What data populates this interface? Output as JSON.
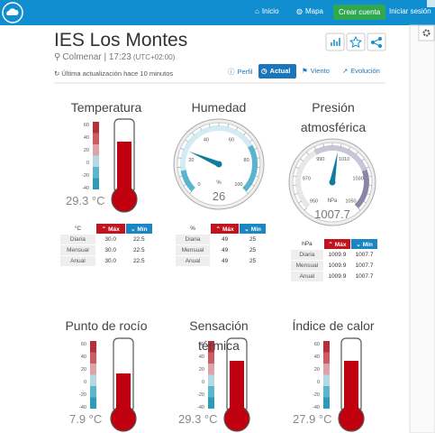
{
  "nav": {
    "links": [
      "Inicio",
      "Mapa"
    ],
    "signup": "Crear cuenta",
    "login": "Iniciar sesión"
  },
  "header": {
    "title": "IES Los Montes",
    "location": "Colmenar | 17:23",
    "timezone": "(UTC+02:00)",
    "updated": "Última actualización hace 10 minutos"
  },
  "tabs": [
    "Perfil",
    "Actual",
    "Viento",
    "Evolución"
  ],
  "widgets": [
    {
      "title": "Temperatura",
      "kind": "thermometer",
      "scale": [
        "60",
        "40",
        "20",
        "0",
        "-20",
        "-40"
      ],
      "reading": "29.3 °C",
      "table": {
        "unit": "°C",
        "columns": [
          "Máx",
          "Mín"
        ],
        "rows": [
          [
            "Diaria",
            "30.0",
            "22.5"
          ],
          [
            "Mensual",
            "30.0",
            "22.5"
          ],
          [
            "Anual",
            "30.0",
            "22.5"
          ]
        ]
      }
    },
    {
      "title": "Humedad",
      "kind": "gauge",
      "scale": [
        "0",
        "20",
        "40",
        "60",
        "80",
        "100"
      ],
      "unit": "%",
      "reading": "26",
      "table": {
        "unit": "%",
        "columns": [
          "Máx",
          "Mín"
        ],
        "rows": [
          [
            "Diaria",
            "49",
            "25"
          ],
          [
            "Mensual",
            "49",
            "25"
          ],
          [
            "Anual",
            "49",
            "25"
          ]
        ]
      }
    },
    {
      "title": "Presión atmosférica",
      "kind": "gauge",
      "scale": [
        "950",
        "970",
        "990",
        "1010",
        "1030",
        "1050"
      ],
      "unit": "hPa",
      "reading": "1007.7",
      "table": {
        "unit": "hPa",
        "columns": [
          "Máx",
          "Mín"
        ],
        "rows": [
          [
            "Diaria",
            "1009.9",
            "1007.7"
          ],
          [
            "Mensual",
            "1009.9",
            "1007.7"
          ],
          [
            "Anual",
            "1009.9",
            "1007.7"
          ]
        ]
      }
    },
    {
      "title": "Punto de rocío",
      "kind": "thermometer",
      "scale": [
        "60",
        "40",
        "20",
        "0",
        "-20",
        "-40"
      ],
      "reading": "7.9 °C"
    },
    {
      "title": "Sensación térmica",
      "kind": "thermometer",
      "scale": [
        "60",
        "40",
        "20",
        "0",
        "-20",
        "-40"
      ],
      "reading": "29.3 °C"
    },
    {
      "title": "Índice de calor",
      "kind": "thermometer",
      "scale": [
        "60",
        "40",
        "20",
        "0",
        "-20",
        "-40"
      ],
      "reading": "27.9 °C"
    }
  ]
}
